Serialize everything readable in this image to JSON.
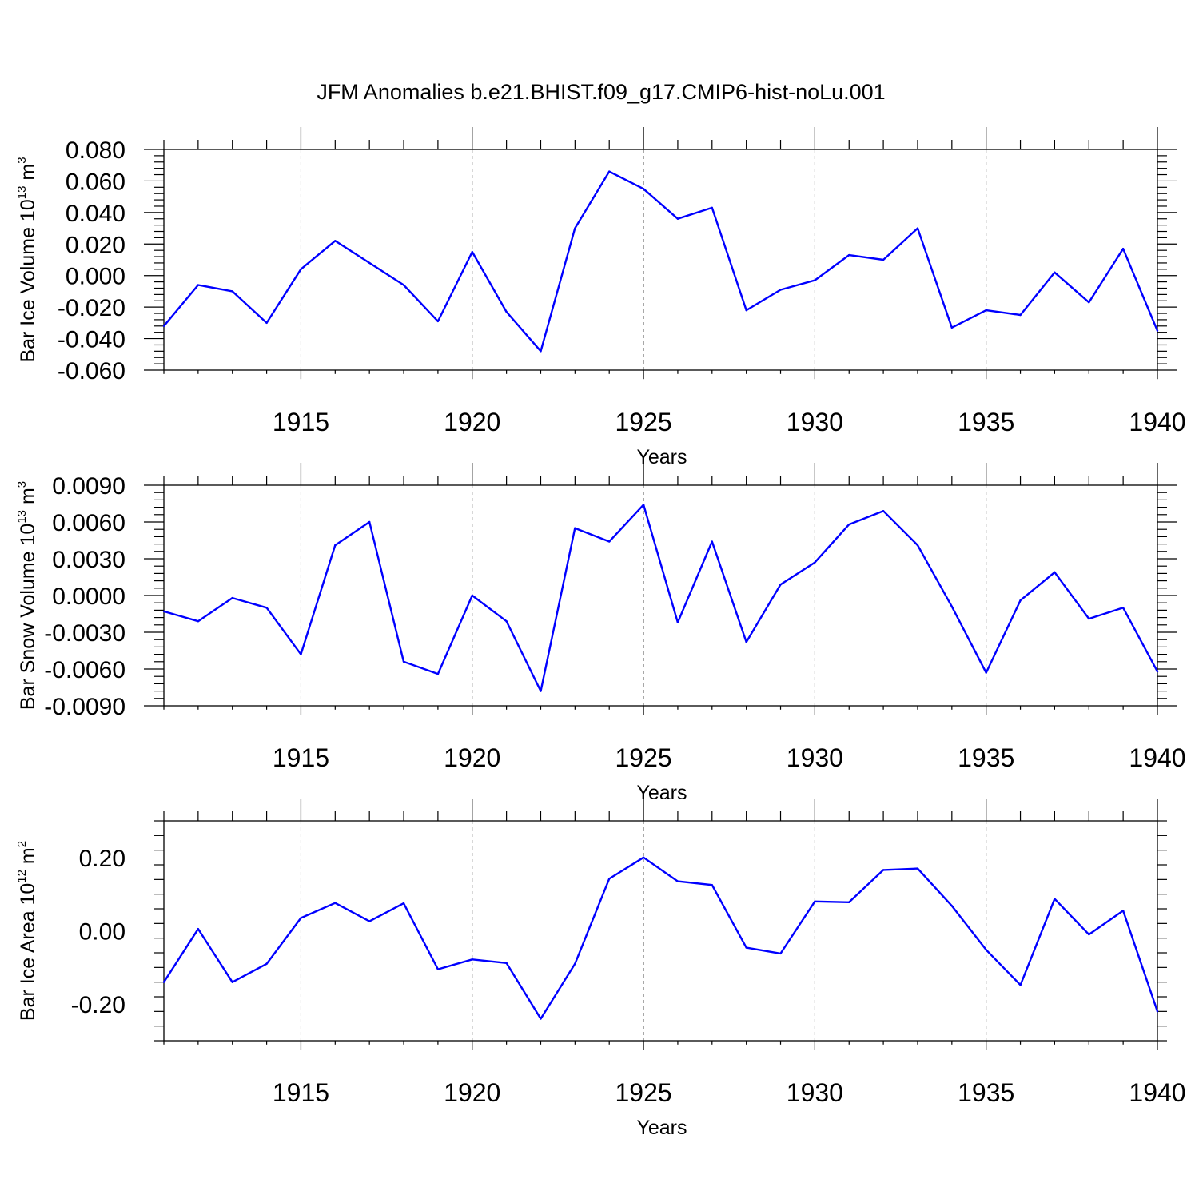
{
  "title": "JFM Anomalies b.e21.BHIST.f09_g17.CMIP6-hist-noLu.001",
  "line_color": "#0000ff",
  "chart_data": [
    {
      "type": "line",
      "x": [
        1911,
        1912,
        1913,
        1914,
        1915,
        1916,
        1917,
        1918,
        1919,
        1920,
        1921,
        1922,
        1923,
        1924,
        1925,
        1926,
        1927,
        1928,
        1929,
        1930,
        1931,
        1932,
        1933,
        1934,
        1935,
        1936,
        1937,
        1938,
        1939,
        1940
      ],
      "values": [
        -0.032,
        -0.006,
        -0.01,
        -0.03,
        0.004,
        0.022,
        0.008,
        -0.006,
        -0.029,
        0.015,
        -0.023,
        -0.048,
        0.03,
        0.066,
        0.055,
        0.036,
        0.043,
        -0.022,
        -0.009,
        -0.003,
        0.013,
        0.01,
        0.03,
        -0.033,
        -0.022,
        -0.025,
        0.002,
        -0.017,
        0.017,
        -0.035
      ],
      "xlim": [
        1911,
        1940
      ],
      "ylim": [
        -0.06,
        0.08
      ],
      "yticks": [
        "0.080",
        "0.060",
        "0.040",
        "0.020",
        "0.000",
        "-0.020",
        "-0.040",
        "-0.060"
      ],
      "ytick_values": [
        0.08,
        0.06,
        0.04,
        0.02,
        0.0,
        -0.02,
        -0.04,
        -0.06
      ],
      "xticks": [
        "1915",
        "1920",
        "1925",
        "1930",
        "1935",
        "1940"
      ],
      "xtick_values": [
        1915,
        1920,
        1925,
        1930,
        1935,
        1940
      ],
      "xlabel": "Years",
      "ylabel_main": "Bar Ice Volume 10",
      "ylabel_exp": "13",
      "ylabel_unit": " m",
      "ylabel_unit_exp": "3"
    },
    {
      "type": "line",
      "x": [
        1911,
        1912,
        1913,
        1914,
        1915,
        1916,
        1917,
        1918,
        1919,
        1920,
        1921,
        1922,
        1923,
        1924,
        1925,
        1926,
        1927,
        1928,
        1929,
        1930,
        1931,
        1932,
        1933,
        1934,
        1935,
        1936,
        1937,
        1938,
        1939,
        1940
      ],
      "values": [
        -0.0013,
        -0.0021,
        -0.0002,
        -0.001,
        -0.0048,
        0.0041,
        0.006,
        -0.0054,
        -0.0064,
        0.0,
        -0.0021,
        -0.0078,
        0.0055,
        0.0044,
        0.0074,
        -0.0022,
        0.0044,
        -0.0038,
        0.0009,
        0.0027,
        0.0058,
        0.0069,
        0.0041,
        -0.0009,
        -0.0063,
        -0.0004,
        0.0019,
        -0.0019,
        -0.001,
        -0.0062
      ],
      "xlim": [
        1911,
        1940
      ],
      "ylim": [
        -0.009,
        0.009
      ],
      "yticks": [
        "0.0090",
        "0.0060",
        "0.0030",
        "0.0000",
        "-0.0030",
        "-0.0060",
        "-0.0090"
      ],
      "ytick_values": [
        0.009,
        0.006,
        0.003,
        0.0,
        -0.003,
        -0.006,
        -0.009
      ],
      "xticks": [
        "1915",
        "1920",
        "1925",
        "1930",
        "1935",
        "1940"
      ],
      "xtick_values": [
        1915,
        1920,
        1925,
        1930,
        1935,
        1940
      ],
      "xlabel": "Years",
      "ylabel_main": "Bar Snow Volume 10",
      "ylabel_exp": "13",
      "ylabel_unit": " m",
      "ylabel_unit_exp": "3"
    },
    {
      "type": "line",
      "x": [
        1911,
        1912,
        1913,
        1914,
        1915,
        1916,
        1917,
        1918,
        1919,
        1920,
        1921,
        1922,
        1923,
        1924,
        1925,
        1926,
        1927,
        1928,
        1929,
        1930,
        1931,
        1932,
        1933,
        1934,
        1935,
        1936,
        1937,
        1938,
        1939,
        1940
      ],
      "values": [
        -0.14,
        0.005,
        -0.14,
        -0.09,
        0.035,
        0.076,
        0.026,
        0.075,
        -0.105,
        -0.078,
        -0.088,
        -0.24,
        -0.09,
        0.142,
        0.2,
        0.135,
        0.125,
        -0.046,
        -0.062,
        0.08,
        0.078,
        0.166,
        0.17,
        0.068,
        -0.052,
        -0.148,
        0.087,
        -0.01,
        0.055,
        -0.22
      ],
      "xlim": [
        1911,
        1940
      ],
      "ylim": [
        -0.3,
        0.3
      ],
      "yticks": [
        "0.20",
        "0.00",
        "-0.20"
      ],
      "ytick_values": [
        0.2,
        0.0,
        -0.2
      ],
      "xticks": [
        "1915",
        "1920",
        "1925",
        "1930",
        "1935",
        "1940"
      ],
      "xtick_values": [
        1915,
        1920,
        1925,
        1930,
        1935,
        1940
      ],
      "xlabel": "Years",
      "ylabel_main": "Bar Ice Area 10",
      "ylabel_exp": "12",
      "ylabel_unit": " m",
      "ylabel_unit_exp": "2"
    }
  ]
}
